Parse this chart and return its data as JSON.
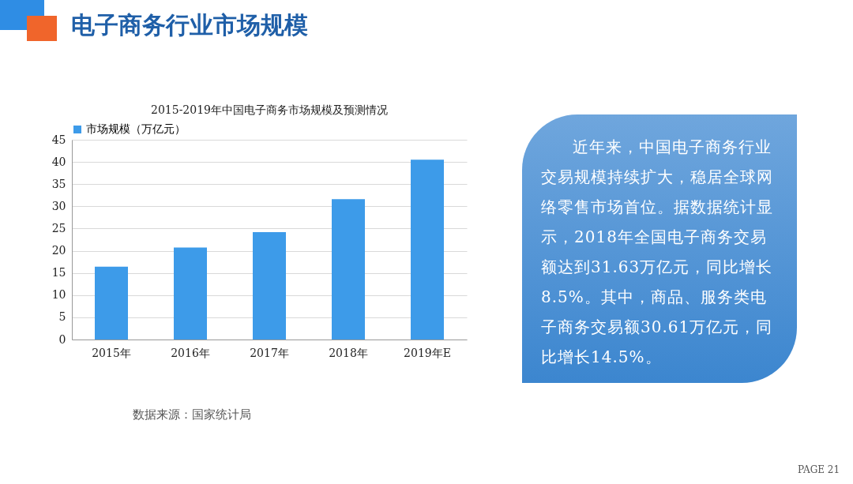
{
  "chart_data": {
    "type": "bar",
    "title": "电子商务行业市场规模",
    "subtitle": "2015-2019年中国电子商务市场规模及预测情况",
    "categories": [
      "2015年",
      "2016年",
      "2017年",
      "2018年",
      "2019年E"
    ],
    "series": [
      {
        "name": "市场规模（万亿元）",
        "color": "#3d9be9",
        "values": [
          16.4,
          20.7,
          24.2,
          31.63,
          40.5
        ]
      }
    ],
    "ylim": [
      0,
      45
    ],
    "yticks": [
      0,
      5,
      10,
      15,
      20,
      25,
      30,
      35,
      40,
      45
    ],
    "grid": "y",
    "legend": "top",
    "annotations": [
      "近年来，中国电子商务行业交易规模持续扩大，稳居全球网络零售市场首位。据数据统计显示，2018年全国电子商务交易额达到31.63万亿元，同比增长8.5%。其中，商品、服务类电子商务交易额30.61万亿元，同比增长14.5%。",
      "数据来源：国家统计局",
      "PAGE 21"
    ]
  }
}
